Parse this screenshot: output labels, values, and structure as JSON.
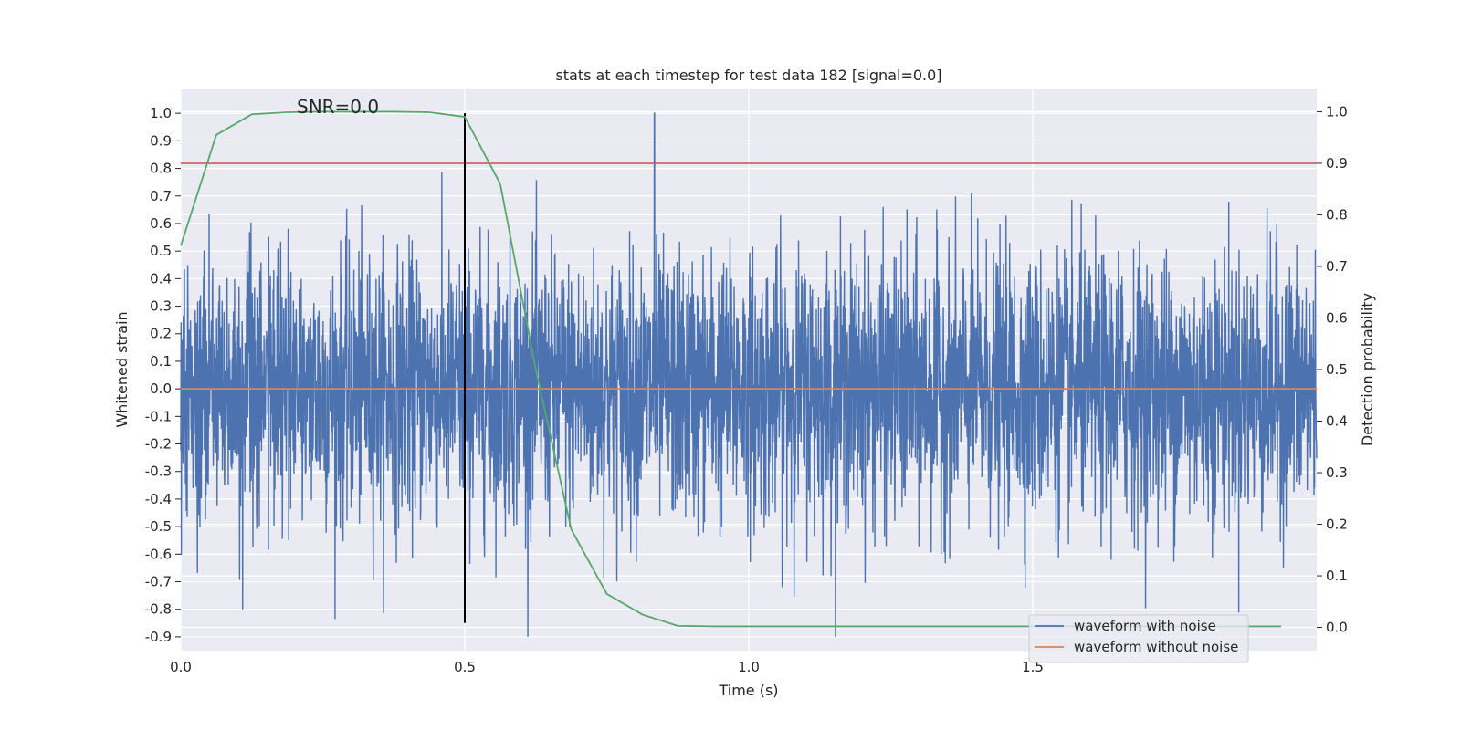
{
  "chart_data": {
    "type": "line",
    "title": "stats at each timestep for test data 182 [signal=0.0]",
    "annotation": "SNR=0.0",
    "xlabel": "Time (s)",
    "ylabel_left": "Whitened strain",
    "ylabel_right": "Detection probability",
    "xlim": [
      0.0,
      2.0
    ],
    "ylim_left": [
      -0.95,
      1.09
    ],
    "ylim_right": [
      -0.045,
      1.045
    ],
    "x_ticks": [
      0.0,
      0.5,
      1.0,
      1.5
    ],
    "x_tick_labels": [
      "0.0",
      "0.5",
      "1.0",
      "1.5"
    ],
    "y_ticks_left": [
      1.0,
      0.9,
      0.8,
      0.7,
      0.6,
      0.5,
      0.4,
      0.3,
      0.2,
      0.1,
      0.0,
      -0.1,
      -0.2,
      -0.3,
      -0.4,
      -0.5,
      -0.6,
      -0.7,
      -0.8,
      -0.9
    ],
    "y_tick_labels_left": [
      "1.0",
      "0.9",
      "0.8",
      "0.7",
      "0.6",
      "0.5",
      "0.4",
      "0.3",
      "0.2",
      "0.1",
      "0.0",
      "-0.1",
      "-0.2",
      "-0.3",
      "-0.4",
      "-0.5",
      "-0.6",
      "-0.7",
      "-0.8",
      "-0.9"
    ],
    "y_ticks_right": [
      1.0,
      0.9,
      0.8,
      0.7,
      0.6,
      0.5,
      0.4,
      0.3,
      0.2,
      0.1,
      0.0
    ],
    "y_tick_labels_right": [
      "1.0",
      "0.9",
      "0.8",
      "0.7",
      "0.6",
      "0.5",
      "0.4",
      "0.3",
      "0.2",
      "0.1",
      "0.0"
    ],
    "grid": true,
    "legend_placement": "lower-right",
    "legend": [
      "waveform with noise",
      "waveform without noise"
    ],
    "series": [
      {
        "name": "waveform with noise",
        "axis": "left",
        "color": "#4c72b0",
        "x_range": [
          0.0,
          2.0
        ],
        "points": 4096,
        "amplitude_std": 0.24,
        "peak": {
          "x": 0.834,
          "y": 1.0
        },
        "min": -0.9,
        "max": 1.0
      },
      {
        "name": "waveform without noise",
        "axis": "left",
        "color": "#dd8452",
        "x": [
          0.0,
          2.0
        ],
        "y": [
          0.0,
          0.0
        ]
      },
      {
        "axis": "right",
        "color": "#55a868",
        "x": [
          0.0,
          0.0625,
          0.125,
          0.1875,
          0.25,
          0.3125,
          0.375,
          0.4375,
          0.5,
          0.5625,
          0.625,
          0.6875,
          0.75,
          0.8125,
          0.875,
          0.9375,
          1.0,
          1.0625,
          1.125,
          1.1875,
          1.25,
          1.3125,
          1.375,
          1.4375,
          1.5,
          1.5625,
          1.625,
          1.6875,
          1.75,
          1.8125,
          1.875,
          1.9375
        ],
        "y": [
          0.74,
          0.955,
          0.995,
          0.999,
          1.0,
          1.0,
          1.0,
          0.999,
          0.99,
          0.86,
          0.5,
          0.19,
          0.065,
          0.025,
          0.003,
          0.002,
          0.002,
          0.002,
          0.002,
          0.002,
          0.002,
          0.002,
          0.002,
          0.002,
          0.002,
          0.002,
          0.002,
          0.002,
          0.002,
          0.002,
          0.002,
          0.002
        ]
      },
      {
        "axis": "right",
        "color": "#c44e52",
        "type": "hline",
        "y": 0.9
      },
      {
        "axis": "left",
        "color": "#000000",
        "type": "vline",
        "x": 0.5,
        "y_range": [
          -0.85,
          1.0
        ]
      }
    ]
  }
}
